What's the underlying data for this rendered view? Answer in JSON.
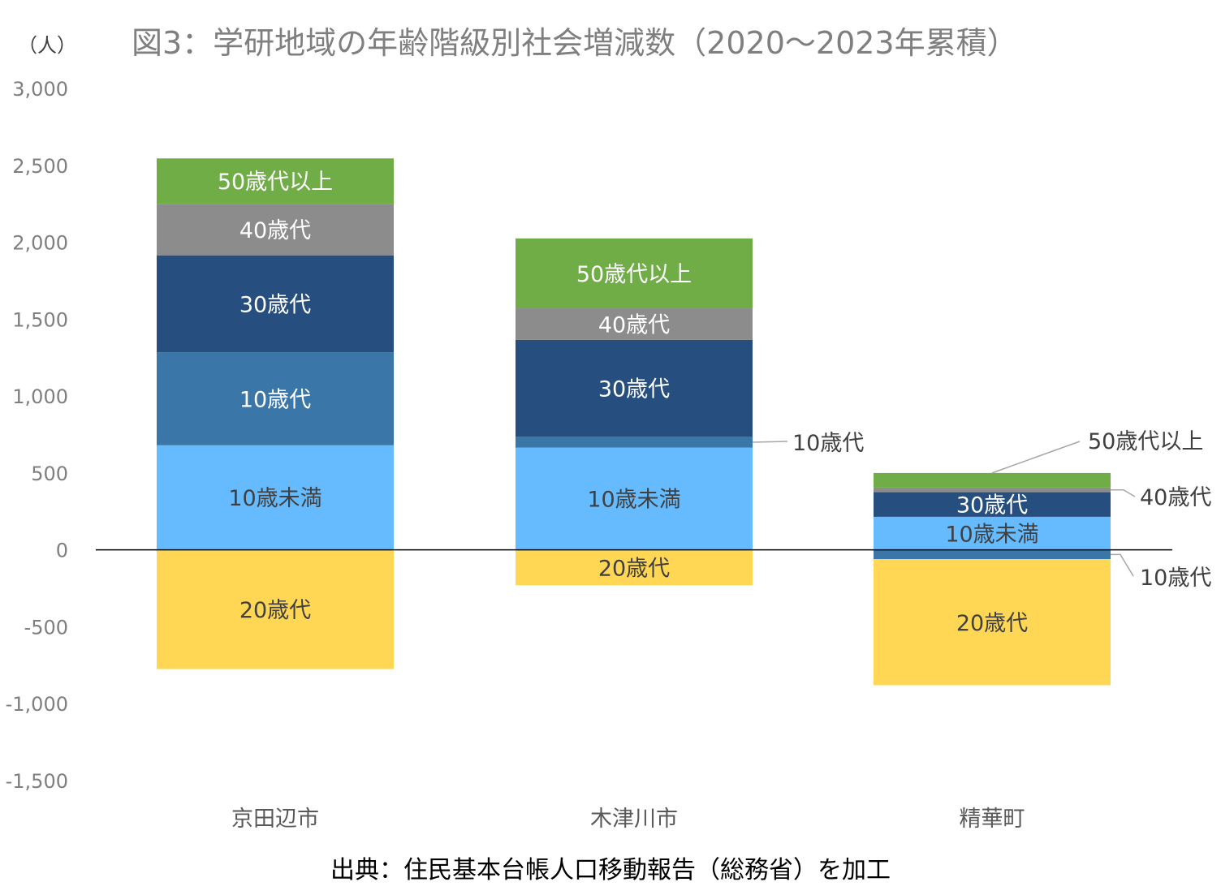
{
  "chart_data": {
    "type": "bar",
    "stacked": true,
    "title": "図3：学研地域の年齢階級別社会増減数（2020～2023年累積）",
    "ylabel": "（人）",
    "source": "出典：住民基本台帳人口移動報告（総務省）を加工",
    "ylim": [
      -1500,
      3000
    ],
    "yticks": [
      3000,
      2500,
      2000,
      1500,
      1000,
      500,
      0,
      -500,
      -1000,
      -1500
    ],
    "ytick_labels": [
      "3,000",
      "2,500",
      "2,000",
      "1,500",
      "1,000",
      "500",
      "0",
      "-500",
      "-1,000",
      "-1,500"
    ],
    "categories": [
      "京田辺市",
      "木津川市",
      "精華町"
    ],
    "series": [
      {
        "name": "10歳未満",
        "color": "#66bbff",
        "text_color": "#404040",
        "values": [
          680,
          665,
          215
        ]
      },
      {
        "name": "10歳代",
        "color": "#3a76a8",
        "text_color": "#ffffff",
        "values": [
          605,
          70,
          -60
        ]
      },
      {
        "name": "30歳代",
        "color": "#264f80",
        "text_color": "#ffffff",
        "values": [
          630,
          630,
          160
        ]
      },
      {
        "name": "40歳代",
        "color": "#8c8c8c",
        "text_color": "#ffffff",
        "values": [
          335,
          205,
          30
        ]
      },
      {
        "name": "50歳代以上",
        "color": "#70ad47",
        "text_color": "#ffffff",
        "values": [
          295,
          455,
          95
        ]
      },
      {
        "name": "20歳代",
        "color": "#ffd754",
        "text_color": "#404040",
        "values": [
          -775,
          -230,
          -820
        ]
      }
    ],
    "callouts": [
      {
        "category": "木津川市",
        "series": "10歳代",
        "label": "10歳代"
      },
      {
        "category": "精華町",
        "series": "50歳代以上",
        "label": "50歳代以上"
      },
      {
        "category": "精華町",
        "series": "40歳代",
        "label": "40歳代"
      },
      {
        "category": "精華町",
        "series": "10歳代",
        "label": "10歳代"
      }
    ]
  }
}
